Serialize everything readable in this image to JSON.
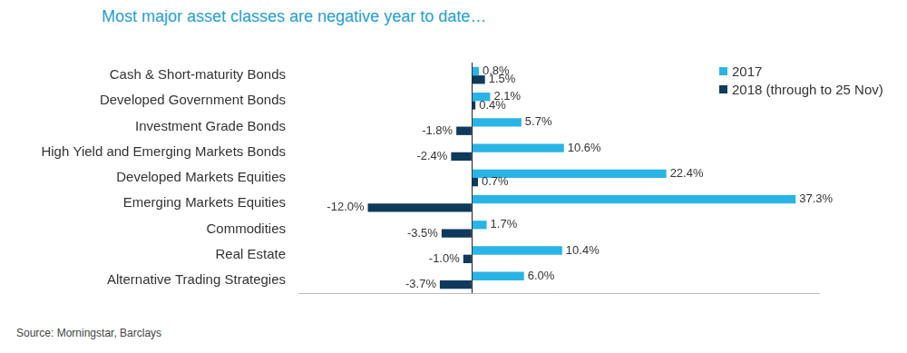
{
  "chart_data": {
    "type": "bar",
    "orientation": "horizontal",
    "title": "Most major asset classes are negative year to date…",
    "annotations": [
      "Source: Morningstar, Barclays"
    ],
    "categories": [
      "Cash & Short-maturity Bonds",
      "Developed Government Bonds",
      "Investment Grade Bonds",
      "High Yield and Emerging Markets Bonds",
      "Developed Markets Equities",
      "Emerging Markets Equities",
      "Commodities",
      "Real Estate",
      "Alternative Trading Strategies"
    ],
    "series": [
      {
        "name": "2017",
        "color": "#2ab4e6",
        "values": [
          0.8,
          2.1,
          5.7,
          10.6,
          22.4,
          37.3,
          1.7,
          10.4,
          6.0
        ],
        "value_labels": [
          "0.8%",
          "2.1%",
          "5.7%",
          "10.6%",
          "22.4%",
          "37.3%",
          "1.7%",
          "10.4%",
          "6.0%"
        ]
      },
      {
        "name": "2018 (through to 25 Nov)",
        "color": "#0e3a5c",
        "values": [
          1.5,
          0.4,
          -1.8,
          -2.4,
          0.7,
          -12.0,
          -3.5,
          -1.0,
          -3.7
        ],
        "value_labels": [
          "1.5%",
          "0.4%",
          "-1.8%",
          "-2.4%",
          "0.7%",
          "-12.0%",
          "-3.5%",
          "-1.0%",
          "-3.7%"
        ]
      }
    ],
    "xlim": [
      -20,
      40
    ],
    "xticks": [
      0
    ],
    "grid": true,
    "legend": "right",
    "data_labels": true,
    "tick_labels": "y"
  }
}
